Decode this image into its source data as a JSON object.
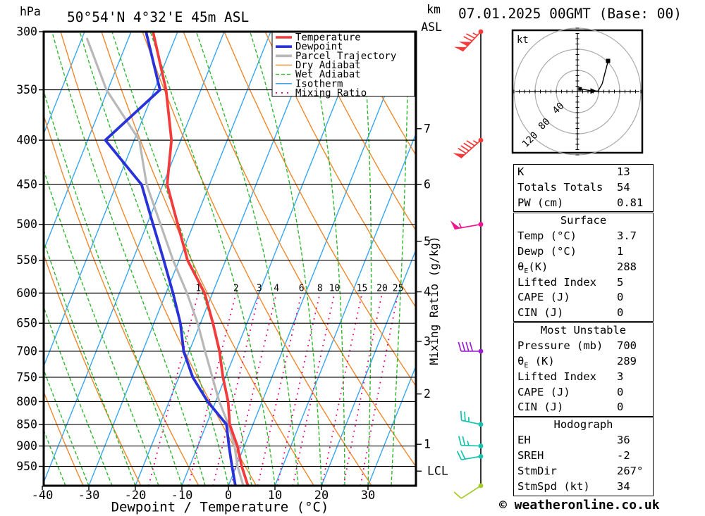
{
  "header": {
    "pressure_unit": "hPa",
    "title": "50°54'N 4°32'E 45m ASL",
    "datetime": "07.01.2025 00GMT (Base: 00)",
    "km_label": "km",
    "asl_label": "ASL"
  },
  "axes": {
    "pressure_levels": [
      300,
      350,
      400,
      450,
      500,
      550,
      600,
      650,
      700,
      750,
      800,
      850,
      900,
      950
    ],
    "temp_ticks": [
      -40,
      -30,
      -20,
      -10,
      0,
      10,
      20,
      30
    ],
    "xlabel": "Dewpoint / Temperature (°C)",
    "mixing_axis_label": "Mixing Ratio (g/kg)",
    "km_ticks": [
      {
        "km": "7",
        "p": 388
      },
      {
        "km": "6",
        "p": 450
      },
      {
        "km": "5",
        "p": 523
      },
      {
        "km": "4",
        "p": 598
      },
      {
        "km": "3",
        "p": 682
      },
      {
        "km": "2",
        "p": 784
      },
      {
        "km": "1",
        "p": 896
      }
    ],
    "lcl": {
      "label": "LCL",
      "p": 962
    }
  },
  "legend": [
    {
      "label": "Temperature",
      "color": "#f43b3b",
      "width": 3.6,
      "dash": ""
    },
    {
      "label": "Dewpoint",
      "color": "#2832d8",
      "width": 3.6,
      "dash": ""
    },
    {
      "label": "Parcel Trajectory",
      "color": "#b8b8b8",
      "width": 3.6,
      "dash": ""
    },
    {
      "label": "Dry Adiabat",
      "color": "#f0882c",
      "width": 1.4,
      "dash": ""
    },
    {
      "label": "Wet Adiabat",
      "color": "#2db82d",
      "width": 1.4,
      "dash": "5,3"
    },
    {
      "label": "Isotherm",
      "color": "#38a6f0",
      "width": 1.4,
      "dash": ""
    },
    {
      "label": "Mixing Ratio",
      "color": "#e6007e",
      "width": 1.8,
      "dash": "2,6"
    }
  ],
  "chart_data": {
    "type": "skewt-log-p sounding",
    "pressure_range_hpa": [
      300,
      1000
    ],
    "isotherm_step_c": 10,
    "isotherm_range_c": [
      -140,
      40
    ],
    "dry_adiabat_theta_c": [
      -80.8,
      -68.4,
      -56,
      -43.6,
      -31.2,
      -18.8,
      -6.4,
      6,
      18.4,
      30.8,
      43.2,
      55.6,
      68,
      80.4,
      92.8,
      105.2
    ],
    "wet_adiabat_t1000_c": [
      -100,
      -95,
      -90,
      -85,
      -80,
      -75,
      -70,
      -65,
      -60,
      -55,
      -50,
      -45,
      -40,
      -35,
      -30,
      -25,
      -20,
      -15,
      -10,
      -5,
      0,
      5,
      10,
      15,
      20,
      25,
      30,
      35
    ],
    "mixing_ratio_g_kg": [
      1,
      2,
      3,
      4,
      6,
      8,
      10,
      15,
      20,
      25
    ],
    "temperature_profile_p_t": [
      [
        1000,
        4.2
      ],
      [
        950,
        1.2
      ],
      [
        900,
        -1.5
      ],
      [
        850,
        -5.0
      ],
      [
        800,
        -7.3
      ],
      [
        750,
        -10.5
      ],
      [
        700,
        -13.5
      ],
      [
        650,
        -17.3
      ],
      [
        600,
        -21.7
      ],
      [
        550,
        -28.2
      ],
      [
        500,
        -33.4
      ],
      [
        450,
        -39.1
      ],
      [
        400,
        -42.0
      ],
      [
        350,
        -47.5
      ],
      [
        300,
        -55.3
      ]
    ],
    "dewpoint_profile_p_t": [
      [
        1000,
        1.5
      ],
      [
        950,
        -0.9
      ],
      [
        900,
        -3.3
      ],
      [
        850,
        -5.7
      ],
      [
        800,
        -11.7
      ],
      [
        750,
        -17.0
      ],
      [
        700,
        -21.2
      ],
      [
        650,
        -24.3
      ],
      [
        600,
        -28.5
      ],
      [
        550,
        -33.3
      ],
      [
        500,
        -38.7
      ],
      [
        450,
        -44.6
      ],
      [
        400,
        -56.2
      ],
      [
        350,
        -48.8
      ],
      [
        300,
        -56.8
      ]
    ],
    "parcel_profile_p_t": [
      [
        1000,
        3.2
      ],
      [
        950,
        0.3
      ],
      [
        900,
        -2.1
      ],
      [
        850,
        -5.3
      ],
      [
        800,
        -9.2
      ],
      [
        750,
        -12.8
      ],
      [
        700,
        -16.6
      ],
      [
        650,
        -20.6
      ],
      [
        600,
        -25.5
      ],
      [
        550,
        -31.3
      ],
      [
        500,
        -37.1
      ],
      [
        450,
        -43.5
      ],
      [
        400,
        -48.9
      ],
      [
        350,
        -60.3
      ],
      [
        305,
        -69.0
      ]
    ],
    "winds": [
      {
        "p": 300,
        "dir": 223,
        "color": "#f43b3b",
        "flags": 2,
        "full": 2,
        "half": 1
      },
      {
        "p": 400,
        "dir": 228,
        "color": "#f43b3b",
        "flags": 1,
        "full": 4,
        "half": 1
      },
      {
        "p": 500,
        "dir": 260,
        "color": "#f01493",
        "flags": 1,
        "full": 0,
        "half": 1
      },
      {
        "p": 700,
        "dir": 270,
        "color": "#9a1fd2",
        "flags": 0,
        "full": 4,
        "half": 0
      },
      {
        "p": 850,
        "dir": 282,
        "color": "#16c2ae",
        "flags": 0,
        "full": 2,
        "half": 1
      },
      {
        "p": 900,
        "dir": 272,
        "color": "#16c2ae",
        "flags": 0,
        "full": 2,
        "half": 1
      },
      {
        "p": 925,
        "dir": 260,
        "color": "#16c2ae",
        "flags": 0,
        "full": 2,
        "half": 0
      },
      {
        "p": 1000,
        "dir": 237,
        "color": "#a6cc2a",
        "flags": 0,
        "full": 1,
        "half": 0
      }
    ],
    "hodograph": {
      "unit_label": "kt",
      "rings_kt": [
        40,
        80,
        120
      ],
      "trace_u_v_kt": [
        [
          5,
          5
        ],
        [
          30,
          1
        ],
        [
          39,
          1
        ],
        [
          47,
          15
        ],
        [
          50,
          27
        ],
        [
          55,
          46
        ],
        [
          58,
          58
        ]
      ],
      "storm_motion_arrow_at_index": 1
    }
  },
  "tables": [
    {
      "header": "",
      "rows": [
        [
          "K",
          "13"
        ],
        [
          "Totals Totals",
          "54"
        ],
        [
          "PW (cm)",
          "0.81"
        ]
      ]
    },
    {
      "header": "Surface",
      "rows": [
        [
          "Temp (°C)",
          "3.7"
        ],
        [
          "Dewp (°C)",
          "1"
        ],
        [
          "θE(K)",
          "288"
        ],
        [
          "Lifted Index",
          "5"
        ],
        [
          "CAPE (J)",
          "0"
        ],
        [
          "CIN (J)",
          "0"
        ]
      ]
    },
    {
      "header": "Most Unstable",
      "rows": [
        [
          "Pressure (mb)",
          "700"
        ],
        [
          "θE (K)",
          "289"
        ],
        [
          "Lifted Index",
          "3"
        ],
        [
          "CAPE (J)",
          "0"
        ],
        [
          "CIN (J)",
          "0"
        ]
      ]
    },
    {
      "header": "Hodograph",
      "rows": [
        [
          "EH",
          "36"
        ],
        [
          "SREH",
          "-2"
        ],
        [
          "StmDir",
          "267°"
        ],
        [
          "StmSpd (kt)",
          "34"
        ]
      ]
    }
  ],
  "footer": "© weatheronline.co.uk"
}
